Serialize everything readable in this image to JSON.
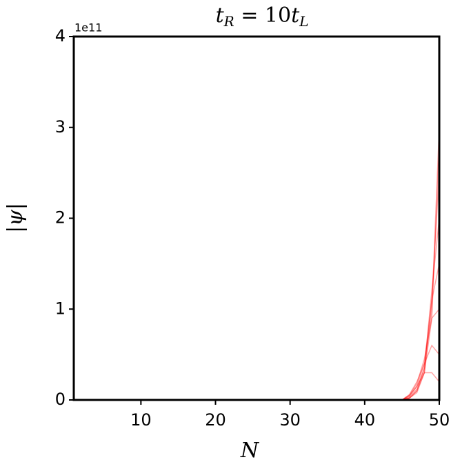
{
  "chart_data": {
    "type": "line",
    "title": [
      "t",
      "R",
      " = 10",
      "t",
      "L"
    ],
    "xlabel": "N",
    "ylabel": "|ψ|",
    "y_offset_text": "1e11",
    "x": [
      1,
      44,
      45,
      46,
      47,
      48,
      49,
      50
    ],
    "series": [
      {
        "color": "rgba(255,0,0,0.35)",
        "values": [
          0,
          0,
          0,
          0.02,
          0.1,
          0.35,
          1.0,
          3.0
        ]
      },
      {
        "color": "rgba(255,0,0,0.35)",
        "values": [
          0,
          0,
          0,
          0.02,
          0.08,
          0.3,
          0.9,
          2.8
        ]
      },
      {
        "color": "rgba(255,0,0,0.35)",
        "values": [
          0,
          0,
          0,
          0.02,
          0.1,
          0.3,
          1.1,
          2.5
        ]
      },
      {
        "color": "rgba(255,0,0,0.35)",
        "values": [
          0,
          0,
          0,
          0.03,
          0.12,
          0.35,
          1.2,
          2.0
        ]
      },
      {
        "color": "rgba(255,0,0,0.35)",
        "values": [
          0,
          0,
          0,
          0.04,
          0.15,
          0.4,
          1.1,
          1.5
        ]
      },
      {
        "color": "rgba(255,0,0,0.35)",
        "values": [
          0,
          0,
          0,
          0.05,
          0.18,
          0.45,
          0.9,
          1.0
        ]
      },
      {
        "color": "rgba(255,0,0,0.35)",
        "values": [
          0,
          0,
          0,
          0.06,
          0.2,
          0.4,
          0.6,
          0.5
        ]
      },
      {
        "color": "rgba(255,0,0,0.35)",
        "values": [
          0,
          0,
          0,
          0.05,
          0.15,
          0.3,
          0.3,
          0.2
        ]
      }
    ],
    "xlim": [
      1,
      50
    ],
    "ylim": [
      0,
      4
    ],
    "xticks": [
      10,
      20,
      30,
      40,
      50
    ],
    "yticks": [
      0,
      1,
      2,
      3,
      4
    ],
    "grid": false
  }
}
